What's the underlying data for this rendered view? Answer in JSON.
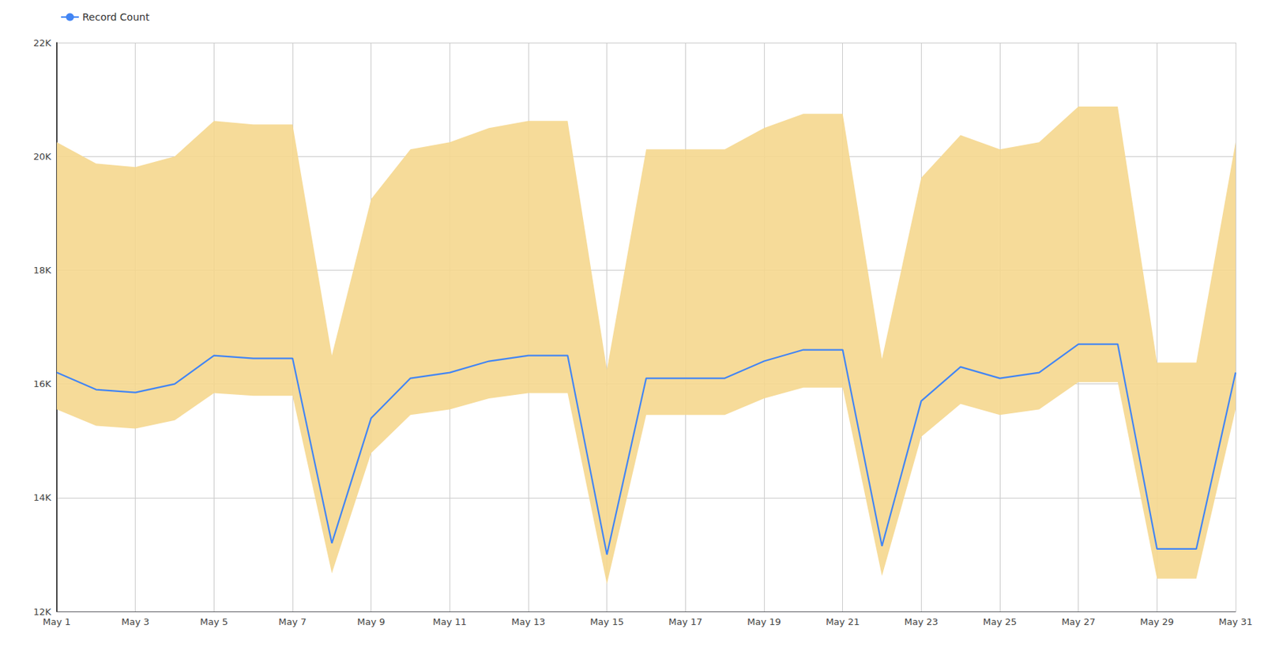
{
  "chart_data": {
    "type": "line",
    "x": [
      1,
      2,
      3,
      4,
      5,
      6,
      7,
      8,
      9,
      10,
      11,
      12,
      13,
      14,
      15,
      16,
      17,
      18,
      19,
      20,
      21,
      22,
      23,
      24,
      25,
      26,
      27,
      28,
      29,
      30,
      31
    ],
    "series": [
      {
        "type": "band",
        "color": "#F5D78E",
        "lower": [
          15552,
          15264,
          15216,
          15360,
          15840,
          15792,
          15792,
          12672,
          14784,
          15456,
          15552,
          15744,
          15840,
          15840,
          12480,
          15456,
          15456,
          15456,
          15744,
          15936,
          15936,
          12624,
          15072,
          15648,
          15456,
          15552,
          16032,
          16032,
          12576,
          12576,
          15552
        ],
        "upper": [
          20250,
          19875,
          19812.5,
          20000,
          20625,
          20562.5,
          20562.5,
          16500,
          19250,
          20125,
          20250,
          20500,
          20625,
          20625,
          16250,
          20125,
          20125,
          20125,
          20500,
          20750,
          20750,
          16437.5,
          19625,
          20375,
          20125,
          20250,
          20875,
          20875,
          16375,
          16375,
          20250
        ]
      },
      {
        "type": "line",
        "name": "Record Count",
        "color": "#4285F4",
        "values": [
          16200,
          15900,
          15850,
          16000,
          16500,
          16450,
          16450,
          13200,
          15400,
          16100,
          16200,
          16400,
          16500,
          16500,
          13000,
          16100,
          16100,
          16100,
          16400,
          16600,
          16600,
          13150,
          15700,
          16300,
          16100,
          16200,
          16700,
          16700,
          13100,
          13100,
          16200
        ]
      }
    ],
    "xlim": [
      1,
      31
    ],
    "xticks": [
      {
        "value": 1,
        "label": "May 1"
      },
      {
        "value": 3,
        "label": "May 3"
      },
      {
        "value": 5,
        "label": "May 5"
      },
      {
        "value": 7,
        "label": "May 7"
      },
      {
        "value": 9,
        "label": "May 9"
      },
      {
        "value": 11,
        "label": "May 11"
      },
      {
        "value": 13,
        "label": "May 13"
      },
      {
        "value": 15,
        "label": "May 15"
      },
      {
        "value": 17,
        "label": "May 17"
      },
      {
        "value": 19,
        "label": "May 19"
      },
      {
        "value": 21,
        "label": "May 21"
      },
      {
        "value": 23,
        "label": "May 23"
      },
      {
        "value": 25,
        "label": "May 25"
      },
      {
        "value": 27,
        "label": "May 27"
      },
      {
        "value": 29,
        "label": "May 29"
      },
      {
        "value": 31,
        "label": "May 31"
      }
    ],
    "ylim": [
      12000,
      22000
    ],
    "yticks": [
      {
        "value": 12000,
        "label": "12K"
      },
      {
        "value": 14000,
        "label": "14K"
      },
      {
        "value": 16000,
        "label": "16K"
      },
      {
        "value": 18000,
        "label": "18K"
      },
      {
        "value": 20000,
        "label": "20K"
      },
      {
        "value": 22000,
        "label": "22K"
      }
    ],
    "grid": true,
    "legend": "upper left"
  }
}
